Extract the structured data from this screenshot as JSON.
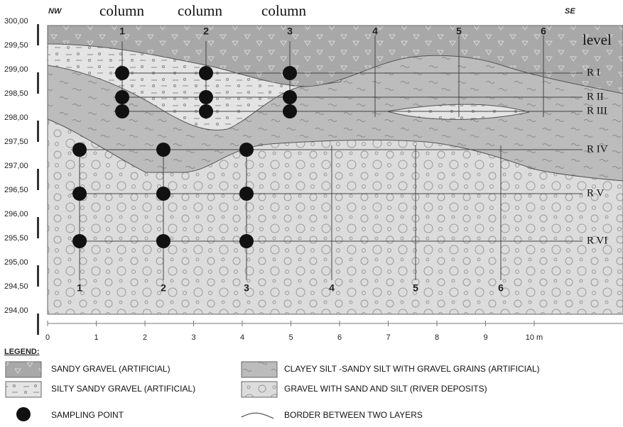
{
  "header": {
    "nw": "NW",
    "se": "SE",
    "columns": [
      "column",
      "column",
      "column"
    ],
    "level": "level"
  },
  "y_axis": [
    "300,00",
    "299,50",
    "299,00",
    "298,50",
    "298,00",
    "297,50",
    "297,00",
    "296,50",
    "296,00",
    "295,50",
    "295,00",
    "294,50",
    "294,00"
  ],
  "x_axis": [
    "0",
    "1",
    "2",
    "3",
    "4",
    "5",
    "6",
    "7",
    "8",
    "9",
    "10 m"
  ],
  "columns_top": [
    "1",
    "2",
    "3",
    "4",
    "5",
    "6"
  ],
  "columns_bottom": [
    "1",
    "2",
    "3",
    "4",
    "5",
    "6"
  ],
  "levels": [
    "R I",
    "R II",
    "R III",
    "R IV",
    "R V",
    "R VI"
  ],
  "legend": {
    "title": "LEGEND:",
    "items": [
      "SANDY GRAVEL (ARTIFICIAL)",
      "CLAYEY SILT -SANDY SILT WITH GRAVEL GRAINS (ARTIFICIAL)",
      "SILTY SANDY GRAVEL (ARTIFICIAL)",
      "GRAVEL WITH SAND AND SILT (RIVER DEPOSITS)",
      "SAMPLING POINT",
      "BORDER BETWEEN TWO LAYERS"
    ]
  }
}
